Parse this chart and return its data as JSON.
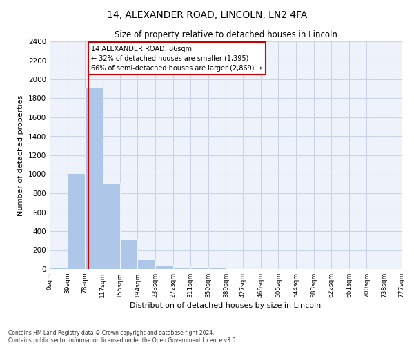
{
  "title1": "14, ALEXANDER ROAD, LINCOLN, LN2 4FA",
  "title2": "Size of property relative to detached houses in Lincoln",
  "xlabel": "Distribution of detached houses by size in Lincoln",
  "ylabel": "Number of detached properties",
  "bin_edges": [
    0,
    39,
    78,
    117,
    155,
    194,
    233,
    272,
    311,
    350,
    389,
    427,
    466,
    505,
    544,
    583,
    622,
    661,
    700,
    738,
    777
  ],
  "bin_labels": [
    "0sqm",
    "39sqm",
    "78sqm",
    "117sqm",
    "155sqm",
    "194sqm",
    "233sqm",
    "272sqm",
    "311sqm",
    "350sqm",
    "389sqm",
    "427sqm",
    "466sqm",
    "505sqm",
    "544sqm",
    "583sqm",
    "622sqm",
    "661sqm",
    "700sqm",
    "738sqm",
    "777sqm"
  ],
  "bar_heights": [
    12,
    1010,
    1910,
    910,
    315,
    105,
    45,
    25,
    20,
    15,
    5,
    5,
    0,
    0,
    0,
    0,
    0,
    0,
    0,
    0
  ],
  "bar_color": "#aec6e8",
  "bar_edge_color": "white",
  "grid_color": "#c8d4e8",
  "background_color": "#eef2fa",
  "red_line_x": 86,
  "red_line_color": "#cc0000",
  "annotation_text": "14 ALEXANDER ROAD: 86sqm\n← 32% of detached houses are smaller (1,395)\n66% of semi-detached houses are larger (2,869) →",
  "annotation_box_color": "#cc0000",
  "ylim": [
    0,
    2400
  ],
  "yticks": [
    0,
    200,
    400,
    600,
    800,
    1000,
    1200,
    1400,
    1600,
    1800,
    2000,
    2200,
    2400
  ],
  "footnote1": "Contains HM Land Registry data © Crown copyright and database right 2024.",
  "footnote2": "Contains public sector information licensed under the Open Government Licence v3.0."
}
